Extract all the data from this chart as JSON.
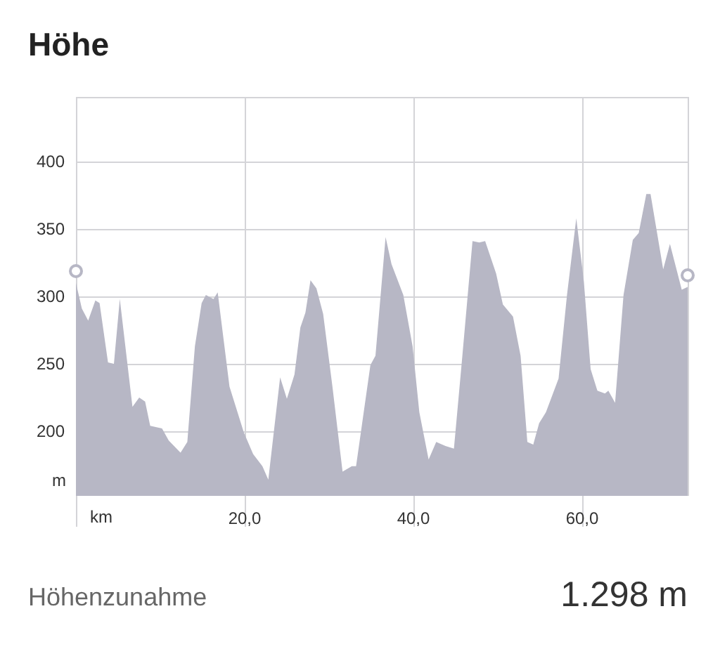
{
  "chart_data": {
    "type": "area",
    "title": "Höhe",
    "xlabel": "km",
    "ylabel": "m",
    "annotations": [
      "Höhenzunahme",
      "1.298 m"
    ],
    "series": [
      {
        "color": "#b7b7c5",
        "x": [
          0,
          0.7,
          1.45,
          2.3,
          2.8,
          3.8,
          4.5,
          5.2,
          6.7,
          7.5,
          8.2,
          8.8,
          10.2,
          11,
          12.4,
          13.2,
          14.1,
          14.9,
          15.4,
          16.3,
          16.8,
          18.2,
          19.9,
          21,
          22.1,
          22.8,
          24.2,
          25,
          25.9,
          26.6,
          27.2,
          27.8,
          28.5,
          29.3,
          30.4,
          31.6,
          32.7,
          33.2,
          34.9,
          35.5,
          36.7,
          37.4,
          38.8,
          39.9,
          40.7,
          41.8,
          42.7,
          43.8,
          44.8,
          45.7,
          47,
          47.8,
          48.5,
          49.8,
          50.6,
          51.8,
          52.7,
          53.5,
          54.2,
          54.9,
          55.7,
          57.2,
          58.2,
          59.3,
          60.2,
          61,
          61.8,
          62.7,
          63.1,
          63.9,
          64.9,
          66,
          66.7,
          67.6,
          68.1,
          69.6,
          70.4,
          71.8,
          72.5
        ],
        "values": [
          310,
          291,
          282,
          297,
          295,
          251,
          250,
          298,
          218,
          225,
          222,
          204,
          202,
          193,
          184,
          192,
          263,
          295,
          301,
          298,
          303,
          233,
          199,
          183,
          174,
          164,
          240,
          224,
          242,
          277,
          288,
          312,
          306,
          287,
          233,
          170,
          174,
          174,
          249,
          256,
          344,
          324,
          301,
          263,
          214,
          179,
          192,
          189,
          187,
          249,
          341,
          340,
          341,
          317,
          294,
          285,
          256,
          192,
          190,
          206,
          214,
          239,
          301,
          358,
          311,
          246,
          230,
          228,
          230,
          221,
          301,
          342,
          347,
          376,
          376,
          320,
          339,
          305,
          307
        ]
      }
    ],
    "xlim": [
      0,
      72.5
    ],
    "xticks": [
      {
        "value": 0,
        "label": null
      },
      {
        "value": 20,
        "label": "20,0"
      },
      {
        "value": 40,
        "label": "40,0"
      },
      {
        "value": 60,
        "label": "60,0"
      }
    ],
    "ylim": [
      152,
      448
    ],
    "yticks": [
      200,
      250,
      300,
      350,
      400
    ],
    "grid": true
  }
}
